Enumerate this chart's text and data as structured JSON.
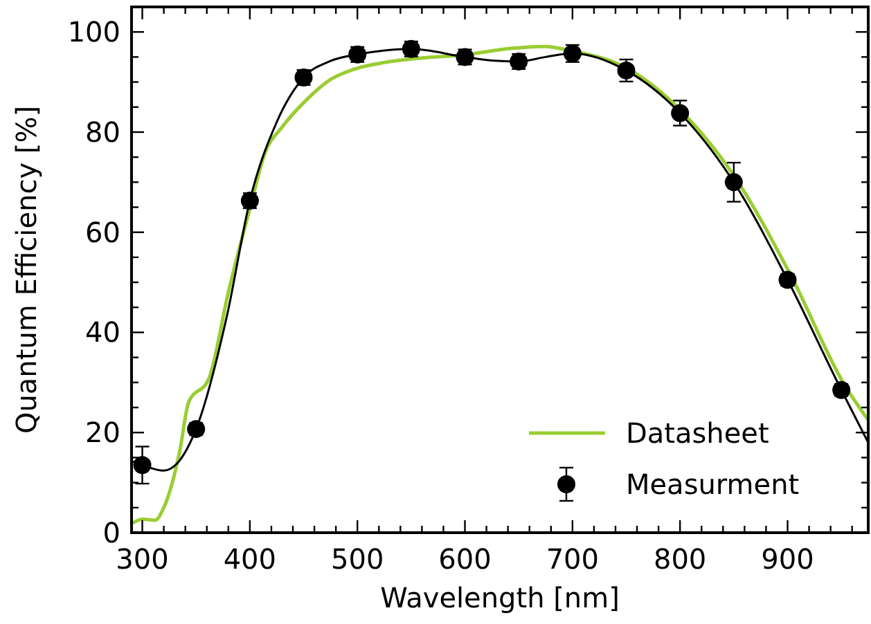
{
  "chart_data": {
    "type": "line",
    "xlabel": "Wavelength [nm]",
    "ylabel": "Quantum Efficiency [%]",
    "xlim": [
      290,
      975
    ],
    "ylim": [
      0,
      105
    ],
    "xticks": [
      300,
      {
        "value": 320,
        "label": null
      },
      {
        "value": 340,
        "label": null
      },
      {
        "value": 360,
        "label": null
      },
      {
        "value": 380,
        "label": null
      },
      400,
      {
        "value": 420,
        "label": null
      },
      {
        "value": 440,
        "label": null
      },
      {
        "value": 460,
        "label": null
      },
      {
        "value": 480,
        "label": null
      },
      500,
      {
        "value": 520,
        "label": null
      },
      {
        "value": 540,
        "label": null
      },
      {
        "value": 560,
        "label": null
      },
      {
        "value": 580,
        "label": null
      },
      600,
      {
        "value": 620,
        "label": null
      },
      {
        "value": 640,
        "label": null
      },
      {
        "value": 660,
        "label": null
      },
      {
        "value": 680,
        "label": null
      },
      700,
      {
        "value": 720,
        "label": null
      },
      {
        "value": 740,
        "label": null
      },
      {
        "value": 760,
        "label": null
      },
      {
        "value": 780,
        "label": null
      },
      800,
      {
        "value": 820,
        "label": null
      },
      {
        "value": 840,
        "label": null
      },
      {
        "value": 860,
        "label": null
      },
      {
        "value": 880,
        "label": null
      },
      900,
      {
        "value": 920,
        "label": null
      },
      {
        "value": 940,
        "label": null
      },
      {
        "value": 960,
        "label": null
      }
    ],
    "yticks": [
      0,
      {
        "value": 5,
        "label": null
      },
      {
        "value": 10,
        "label": null
      },
      {
        "value": 15,
        "label": null
      },
      20,
      {
        "value": 25,
        "label": null
      },
      {
        "value": 30,
        "label": null
      },
      {
        "value": 35,
        "label": null
      },
      40,
      {
        "value": 45,
        "label": null
      },
      {
        "value": 50,
        "label": null
      },
      {
        "value": 55,
        "label": null
      },
      60,
      {
        "value": 65,
        "label": null
      },
      {
        "value": 70,
        "label": null
      },
      {
        "value": 75,
        "label": null
      },
      80,
      {
        "value": 85,
        "label": null
      },
      {
        "value": 90,
        "label": null
      },
      {
        "value": 95,
        "label": null
      },
      100
    ],
    "legend": "bottom right",
    "series": [
      {
        "name": "Datasheet",
        "color": "#9acd32",
        "x": [
          291,
          300,
          312,
          320,
          335,
          343,
          362,
          380,
          400,
          414,
          430,
          452,
          475,
          499,
          525,
          550,
          602,
          642,
          674,
          702,
          751,
          802,
          852,
          903,
          953,
          975
        ],
        "values": [
          1.9,
          2.7,
          2.5,
          5,
          16.5,
          26,
          30.8,
          48,
          64.7,
          75.8,
          81,
          86.3,
          90.5,
          92.7,
          93.9,
          94.6,
          95.5,
          96.7,
          97.1,
          96.1,
          92.7,
          84,
          70.7,
          51.4,
          29.5,
          22.5
        ]
      },
      {
        "color": "#000000",
        "x": [
          290,
          300,
          320,
          335,
          350,
          379,
          400,
          425,
          450,
          475,
          500,
          525,
          550,
          600,
          625,
          650,
          675,
          700,
          750,
          800,
          850,
          900,
          950,
          975
        ],
        "values": [
          14.3,
          13.5,
          12.4,
          14.5,
          20.7,
          43.6,
          66.3,
          82,
          90.9,
          94.2,
          95.5,
          96.3,
          96.6,
          95,
          94.3,
          94.1,
          95,
          95.7,
          92.3,
          83.8,
          70,
          50.5,
          28.5,
          18
        ]
      },
      {
        "name": "Measurment",
        "type": "scatter",
        "marker": "circle",
        "color": "#000000",
        "x": [
          300,
          350,
          400,
          450,
          500,
          550,
          600,
          650,
          700,
          750,
          800,
          850,
          900,
          950
        ],
        "values": [
          13.5,
          20.7,
          66.3,
          90.9,
          95.5,
          96.6,
          95,
          94.1,
          95.7,
          92.3,
          83.8,
          70,
          50.5,
          28.5
        ],
        "errors": [
          3.7,
          1.2,
          1.5,
          1.5,
          1.5,
          1.5,
          1.5,
          1.5,
          1.7,
          2.2,
          2.5,
          3.9,
          1.2,
          1.2
        ]
      }
    ]
  }
}
